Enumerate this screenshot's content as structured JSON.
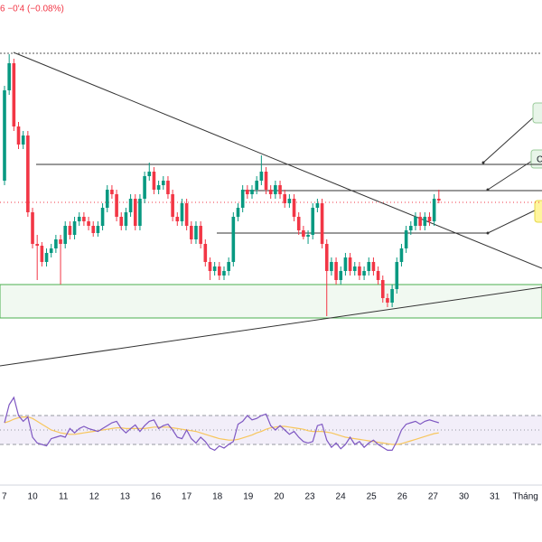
{
  "chart_data": {
    "type": "candlestick",
    "header": "6  −0'4 (−0.08%)",
    "up_color": "#089981",
    "down_color": "#f23645",
    "ylim": [
      0,
      420
    ],
    "x_labels": [
      "7",
      "10",
      "11",
      "12",
      "13",
      "16",
      "17",
      "18",
      "19",
      "20",
      "23",
      "24",
      "25",
      "26",
      "27",
      "30",
      "31",
      "Tháng"
    ],
    "levels": [
      361,
      238,
      209,
      196,
      162
    ],
    "zone": [
      68,
      105
    ],
    "callout": "C",
    "candles": [
      [
        220,
        325,
        215,
        320
      ],
      [
        320,
        360,
        315,
        350
      ],
      [
        350,
        355,
        275,
        280
      ],
      [
        280,
        285,
        255,
        260
      ],
      [
        260,
        275,
        255,
        270
      ],
      [
        270,
        275,
        180,
        185
      ],
      [
        185,
        190,
        145,
        150
      ],
      [
        150,
        160,
        110,
        148
      ],
      [
        148,
        152,
        125,
        130
      ],
      [
        130,
        145,
        125,
        140
      ],
      [
        140,
        150,
        135,
        145
      ],
      [
        145,
        160,
        140,
        155
      ],
      [
        155,
        160,
        105,
        150
      ],
      [
        150,
        175,
        145,
        170
      ],
      [
        170,
        175,
        155,
        160
      ],
      [
        160,
        180,
        155,
        175
      ],
      [
        175,
        185,
        170,
        180
      ],
      [
        180,
        185,
        170,
        175
      ],
      [
        175,
        180,
        165,
        170
      ],
      [
        170,
        175,
        158,
        162
      ],
      [
        162,
        175,
        158,
        170
      ],
      [
        170,
        195,
        165,
        190
      ],
      [
        190,
        215,
        185,
        210
      ],
      [
        210,
        215,
        200,
        205
      ],
      [
        205,
        210,
        175,
        180
      ],
      [
        180,
        185,
        165,
        170
      ],
      [
        170,
        190,
        165,
        185
      ],
      [
        185,
        205,
        180,
        200
      ],
      [
        200,
        205,
        165,
        170
      ],
      [
        170,
        205,
        165,
        200
      ],
      [
        200,
        230,
        195,
        225
      ],
      [
        225,
        240,
        220,
        230
      ],
      [
        230,
        235,
        205,
        210
      ],
      [
        210,
        220,
        205,
        215
      ],
      [
        215,
        225,
        210,
        220
      ],
      [
        220,
        225,
        200,
        205
      ],
      [
        205,
        210,
        175,
        180
      ],
      [
        180,
        185,
        170,
        175
      ],
      [
        175,
        200,
        170,
        195
      ],
      [
        195,
        200,
        165,
        170
      ],
      [
        170,
        175,
        150,
        155
      ],
      [
        155,
        175,
        150,
        170
      ],
      [
        170,
        175,
        145,
        150
      ],
      [
        150,
        155,
        125,
        130
      ],
      [
        130,
        135,
        110,
        120
      ],
      [
        120,
        130,
        115,
        125
      ],
      [
        125,
        130,
        110,
        115
      ],
      [
        115,
        125,
        110,
        120
      ],
      [
        120,
        135,
        115,
        130
      ],
      [
        130,
        185,
        125,
        180
      ],
      [
        180,
        195,
        175,
        190
      ],
      [
        190,
        215,
        185,
        210
      ],
      [
        210,
        215,
        200,
        205
      ],
      [
        205,
        215,
        200,
        210
      ],
      [
        210,
        225,
        205,
        220
      ],
      [
        220,
        248,
        215,
        230
      ],
      [
        230,
        235,
        205,
        210
      ],
      [
        210,
        215,
        200,
        205
      ],
      [
        205,
        220,
        200,
        215
      ],
      [
        215,
        220,
        200,
        205
      ],
      [
        205,
        210,
        190,
        195
      ],
      [
        195,
        205,
        190,
        200
      ],
      [
        200,
        205,
        175,
        180
      ],
      [
        180,
        185,
        160,
        165
      ],
      [
        165,
        170,
        155,
        158
      ],
      [
        158,
        165,
        150,
        160
      ],
      [
        160,
        195,
        155,
        190
      ],
      [
        190,
        200,
        185,
        195
      ],
      [
        195,
        200,
        145,
        150
      ],
      [
        150,
        155,
        70,
        120
      ],
      [
        120,
        135,
        115,
        130
      ],
      [
        130,
        135,
        105,
        110
      ],
      [
        110,
        125,
        105,
        120
      ],
      [
        120,
        140,
        115,
        135
      ],
      [
        135,
        140,
        115,
        120
      ],
      [
        120,
        130,
        115,
        125
      ],
      [
        125,
        130,
        110,
        115
      ],
      [
        115,
        125,
        110,
        120
      ],
      [
        120,
        135,
        115,
        130
      ],
      [
        130,
        135,
        115,
        120
      ],
      [
        120,
        125,
        105,
        110
      ],
      [
        110,
        115,
        85,
        90
      ],
      [
        90,
        95,
        80,
        85
      ],
      [
        85,
        105,
        80,
        100
      ],
      [
        100,
        135,
        95,
        130
      ],
      [
        130,
        150,
        125,
        145
      ],
      [
        145,
        170,
        140,
        165
      ],
      [
        165,
        175,
        160,
        170
      ],
      [
        170,
        185,
        165,
        180
      ],
      [
        180,
        185,
        165,
        170
      ],
      [
        170,
        185,
        165,
        180
      ],
      [
        180,
        185,
        170,
        175
      ],
      [
        175,
        205,
        170,
        200
      ],
      [
        200,
        210,
        195,
        198
      ]
    ],
    "rsi": {
      "ylim": [
        0,
        100
      ],
      "bands": [
        70,
        50,
        30
      ],
      "line_color": "#7e57c2",
      "ma_color": "#f7c65c",
      "values": [
        60,
        85,
        95,
        70,
        62,
        68,
        40,
        32,
        30,
        28,
        38,
        40,
        42,
        40,
        52,
        46,
        52,
        55,
        52,
        50,
        48,
        52,
        56,
        60,
        62,
        52,
        46,
        52,
        57,
        48,
        56,
        62,
        64,
        52,
        56,
        58,
        50,
        40,
        38,
        50,
        38,
        32,
        40,
        34,
        25,
        22,
        28,
        25,
        30,
        34,
        58,
        62,
        70,
        64,
        66,
        70,
        72,
        56,
        50,
        56,
        50,
        44,
        48,
        40,
        34,
        32,
        34,
        56,
        58,
        36,
        26,
        32,
        24,
        30,
        40,
        30,
        34,
        26,
        32,
        36,
        30,
        26,
        22,
        22,
        34,
        50,
        58,
        60,
        62,
        58,
        62,
        64,
        62,
        60
      ],
      "ma": [
        60,
        62,
        65,
        67,
        68,
        68,
        66,
        62,
        58,
        54,
        50,
        48,
        46,
        45,
        44,
        44,
        45,
        46,
        47,
        48,
        49,
        50,
        51,
        52,
        53,
        53,
        52,
        52,
        52,
        52,
        52,
        53,
        54,
        54,
        54,
        54,
        53,
        52,
        51,
        50,
        49,
        48,
        46,
        44,
        42,
        40,
        38,
        37,
        36,
        36,
        37,
        39,
        41,
        43,
        46,
        48,
        51,
        53,
        54,
        55,
        55,
        54,
        53,
        52,
        51,
        49,
        48,
        48,
        48,
        47,
        46,
        44,
        42,
        40,
        39,
        38,
        37,
        36,
        35,
        34,
        33,
        32,
        31,
        30,
        30,
        31,
        33,
        35,
        37,
        39,
        41,
        43,
        45,
        46
      ]
    }
  }
}
